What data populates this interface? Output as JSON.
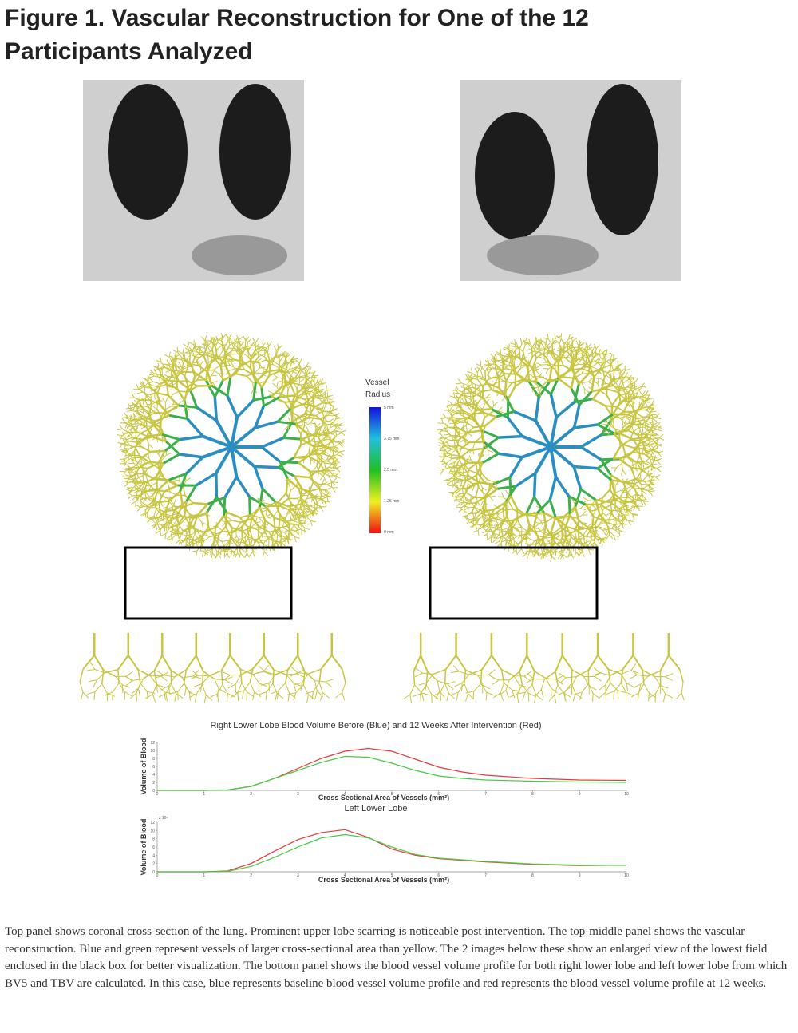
{
  "header": {
    "title_line1": "Figure 1. Vascular Reconstruction for One of the 12",
    "title_line2": "Participants Analyzed"
  },
  "colorbar": {
    "title_line1": "Vessel",
    "title_line2": "Radius",
    "labels": [
      "5 mm",
      "3.75 mm",
      "2.5 mm",
      "1.25 mm",
      "0 mm"
    ]
  },
  "chart_data": [
    {
      "type": "line",
      "title": "Right Lower Lobe Blood Volume Before (Blue) and 12 Weeks After Intervention (Red)",
      "x_label": "Cross Sectional Area of Vessels (mm²)",
      "y_label": "Volume of Blood",
      "xlim": [
        0,
        10
      ],
      "xticks": [
        0,
        1,
        2,
        3,
        4,
        5,
        6,
        7,
        8,
        9,
        10
      ],
      "ylim": [
        0,
        12
      ],
      "yticks": [
        0,
        2,
        4,
        6,
        8,
        10,
        12
      ],
      "x": [
        0,
        1,
        1.5,
        2,
        2.5,
        3,
        3.5,
        4,
        4.5,
        5,
        5.5,
        6,
        6.5,
        7,
        8,
        9,
        10
      ],
      "series": [
        {
          "color": "#e8393b",
          "values": [
            0,
            0,
            0.1,
            1,
            3,
            5.5,
            8,
            9.8,
            10.5,
            9.8,
            7.8,
            5.8,
            4.6,
            3.8,
            3,
            2.6,
            2.5
          ]
        },
        {
          "color": "#44cc44",
          "values": [
            0,
            0,
            0.1,
            1,
            3,
            5,
            7,
            8.5,
            8.3,
            6.8,
            5,
            3.6,
            3,
            2.6,
            2.3,
            2.1,
            2
          ]
        }
      ]
    },
    {
      "type": "line",
      "title": "Left Lower Lobe",
      "x_label": "Cross Sectional Area of Vessels (mm²)",
      "y_label": "Volume of Blood",
      "y_multiplier": "x 10⁴",
      "xlim": [
        0,
        10
      ],
      "xticks": [
        0,
        1,
        2,
        3,
        4,
        5,
        6,
        7,
        8,
        9,
        10
      ],
      "ylim": [
        0,
        12
      ],
      "yticks": [
        0,
        2,
        4,
        6,
        8,
        10,
        12
      ],
      "x": [
        0,
        1,
        1.5,
        2,
        2.5,
        3,
        3.5,
        4,
        4.5,
        5,
        5.5,
        6,
        7,
        8,
        9,
        10
      ],
      "series": [
        {
          "color": "#e8393b",
          "values": [
            0,
            0,
            0.2,
            2,
            5,
            7.8,
            9.5,
            10.2,
            8.3,
            5.5,
            4,
            3.2,
            2.4,
            1.8,
            1.5,
            1.6
          ]
        },
        {
          "color": "#44cc44",
          "values": [
            0,
            0,
            0.1,
            1.3,
            3.5,
            6,
            8.2,
            9,
            8.2,
            6,
            4.2,
            3.3,
            2.5,
            1.9,
            1.6,
            1.6
          ]
        }
      ]
    }
  ],
  "caption": "Top panel shows coronal cross-section of the lung. Prominent upper lobe scarring is noticeable post intervention.  The top-middle panel shows the vascular reconstruction.  Blue and green represent vessels of larger cross-sectional area than yellow. The 2 images below these show an enlarged view of the lowest field enclosed in the black box for better visualization.  The bottom panel shows the blood vessel volume profile for both right lower lobe and left lower lobe from which BV5 and TBV are calculated.  In this case, blue represents baseline blood vessel volume profile and red represents the blood vessel volume profile at 12 weeks."
}
